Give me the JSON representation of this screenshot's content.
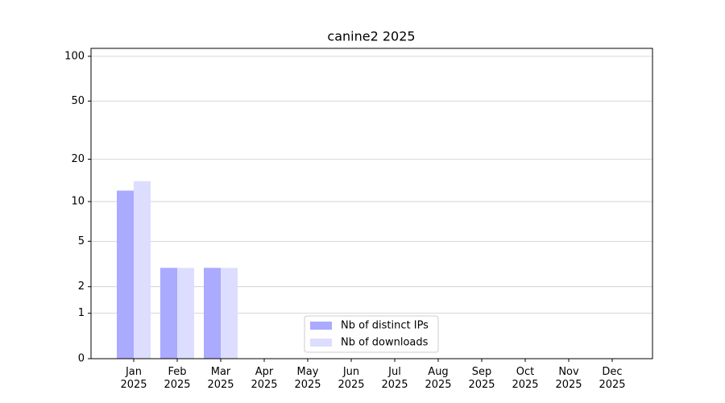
{
  "chart_data": {
    "type": "bar",
    "title": "canine2 2025",
    "categories": [
      "Jan 2025",
      "Feb 2025",
      "Mar 2025",
      "Apr 2025",
      "May 2025",
      "Jun 2025",
      "Jul 2025",
      "Aug 2025",
      "Sep 2025",
      "Oct 2025",
      "Nov 2025",
      "Dec 2025"
    ],
    "series": [
      {
        "name": "Nb of distinct IPs",
        "color": "#aaaaff",
        "values": [
          12,
          3,
          3,
          0,
          0,
          0,
          0,
          0,
          0,
          0,
          0,
          0
        ]
      },
      {
        "name": "Nb of downloads",
        "color": "#ddddff",
        "values": [
          14,
          3,
          3,
          0,
          0,
          0,
          0,
          0,
          0,
          0,
          0,
          0
        ]
      }
    ],
    "yscale": "log1p",
    "ylim": [
      0,
      113
    ],
    "yticks": [
      0,
      1,
      2,
      5,
      10,
      20,
      50,
      100
    ],
    "grid": true,
    "legend": "lower center"
  }
}
